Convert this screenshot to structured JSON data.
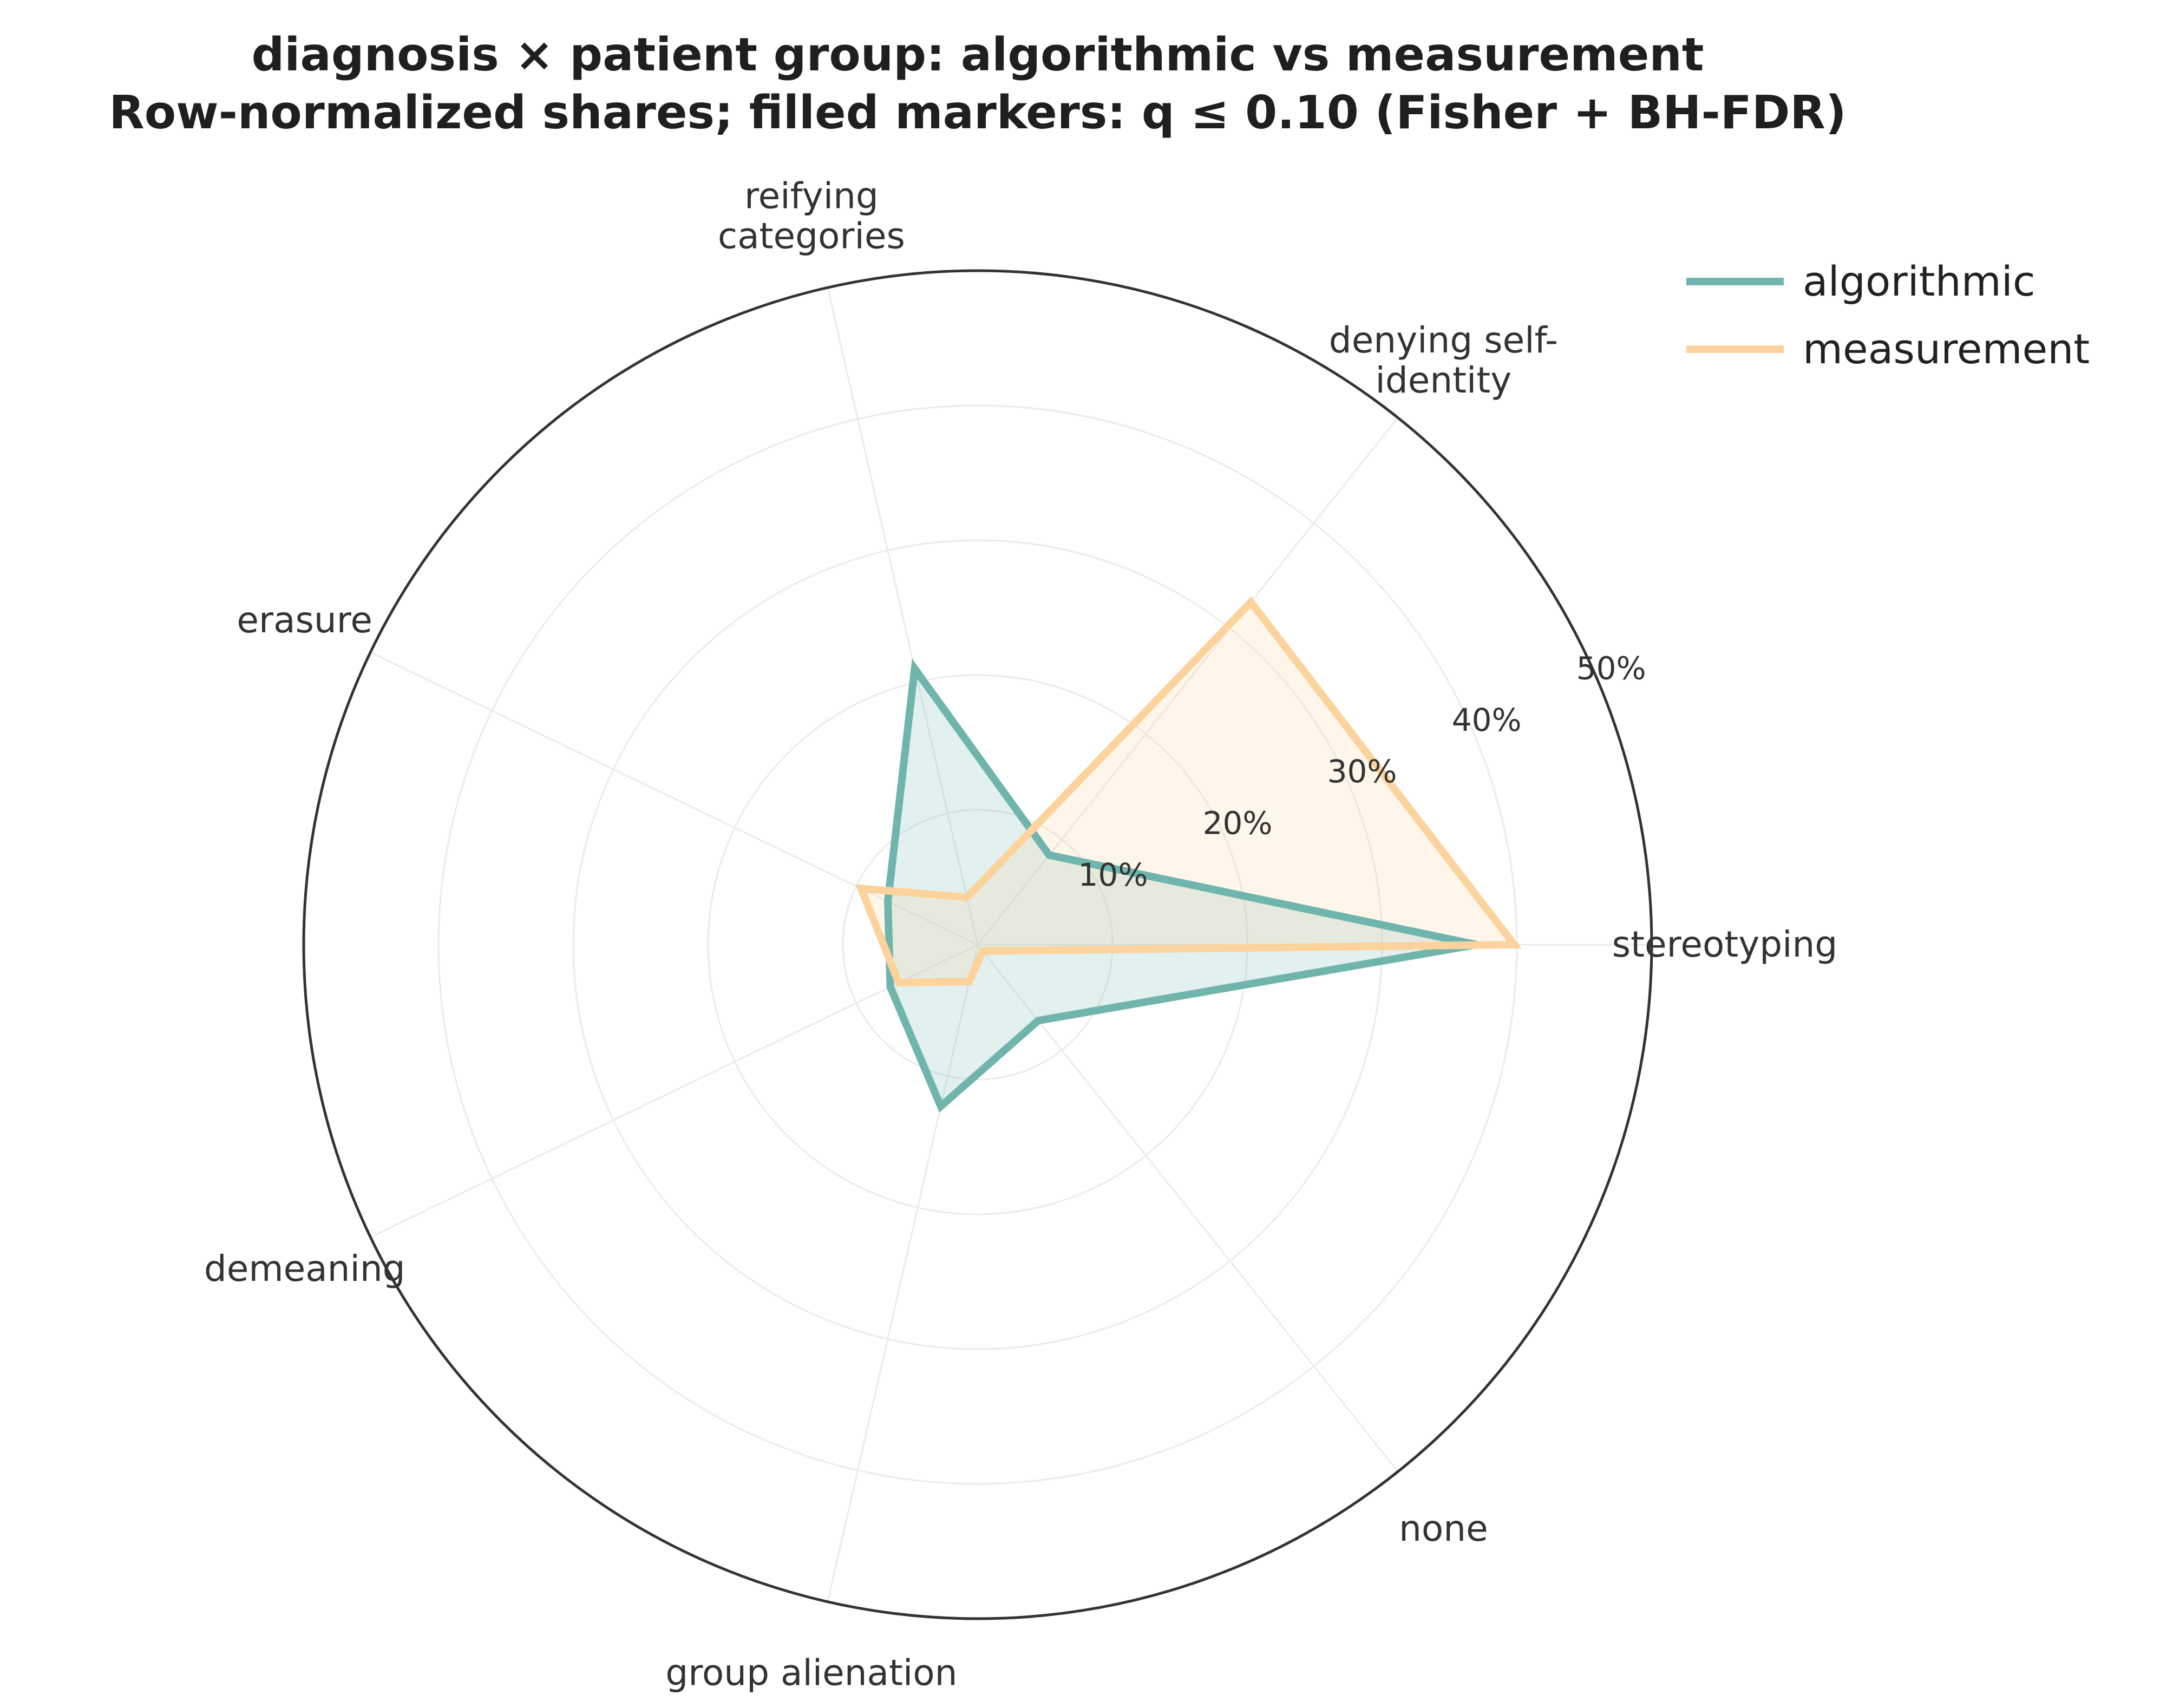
{
  "chart_data": {
    "type": "radar",
    "title_lines": [
      "diagnosis × patient group: algorithmic vs measurement",
      "Row-normalized shares; filled markers: q ≤ 0.10 (Fisher + BH-FDR)"
    ],
    "axes": [
      [
        "stereotyping"
      ],
      [
        "denying self-",
        "identity"
      ],
      [
        "reifying",
        "categories"
      ],
      [
        "erasure"
      ],
      [
        "demeaning"
      ],
      [
        "group alienation"
      ],
      [
        "none"
      ]
    ],
    "r_ticks": [
      10,
      20,
      30,
      40,
      50
    ],
    "r_tick_labels": [
      "10%",
      "20%",
      "30%",
      "40%",
      "50%"
    ],
    "rlim": [
      0,
      50
    ],
    "series": [
      {
        "name": "algorithmic",
        "color": "#6fb5ad",
        "values": [
          37,
          8.5,
          21,
          7.4,
          7.2,
          12.3,
          7.2
        ]
      },
      {
        "name": "measurement",
        "color": "#fcd39c",
        "values": [
          39.8,
          32.5,
          3.6,
          9.6,
          6.5,
          2.8,
          0.6
        ]
      }
    ],
    "legend_position": "top-right",
    "grid": true
  }
}
